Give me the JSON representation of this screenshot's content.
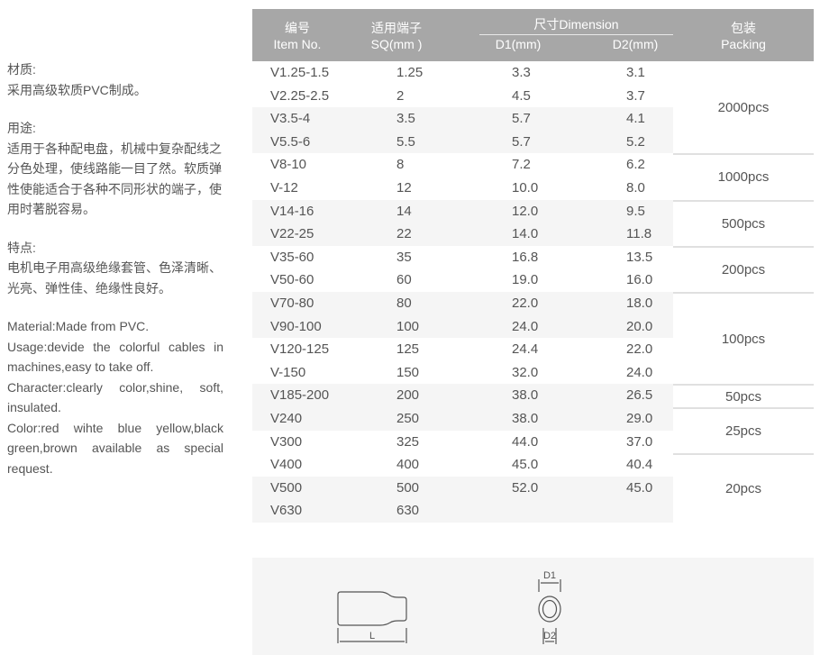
{
  "description": {
    "cn_material_title": "材质:",
    "cn_material_text": "采用高级软质PVC制成。",
    "cn_usage_title": "用途:",
    "cn_usage_text": "适用于各种配电盘，机械中复杂配线之分色处理，使线路能一目了然。软质弹性使能适合于各种不同形状的端子，使用时著脱容易。",
    "cn_feature_title": "特点:",
    "cn_feature_text": "电机电子用高级绝缘套管、色泽清晰、光亮、弹性佳、绝缘性良好。",
    "en_material": "Material:Made from PVC.",
    "en_usage": "Usage:devide the colorful cables in machines,easy to take off.",
    "en_character": "Character:clearly color,shine, soft, insulated.",
    "en_color": "Color:red wihte blue yellow,black green,brown available as special request."
  },
  "table": {
    "header": {
      "item_cn": "编号",
      "item_en": "Item No.",
      "sq_cn": "适用端子",
      "sq_en": "SQ(mm )",
      "dimension": "尺寸Dimension",
      "d1": "D1(mm)",
      "d2": "D2(mm)",
      "packing_cn": "包装",
      "packing_en": "Packing"
    },
    "rows": [
      [
        "V1.25-1.5",
        "1.25",
        "3.3",
        "3.1"
      ],
      [
        "V2.25-2.5",
        "2",
        "4.5",
        "3.7"
      ],
      [
        "V3.5-4",
        "3.5",
        "5.7",
        "4.1"
      ],
      [
        "V5.5-6",
        "5.5",
        "5.7",
        "5.2"
      ],
      [
        "V8-10",
        "8",
        "7.2",
        "6.2"
      ],
      [
        "V-12",
        "12",
        "10.0",
        "8.0"
      ],
      [
        "V14-16",
        "14",
        "12.0",
        "9.5"
      ],
      [
        "V22-25",
        "22",
        "14.0",
        "11.8"
      ],
      [
        "V35-60",
        "35",
        "16.8",
        "13.5"
      ],
      [
        "V50-60",
        "60",
        "19.0",
        "16.0"
      ],
      [
        "V70-80",
        "80",
        "22.0",
        "18.0"
      ],
      [
        "V90-100",
        "100",
        "24.0",
        "20.0"
      ],
      [
        "V120-125",
        "125",
        "24.4",
        "22.0"
      ],
      [
        "V-150",
        "150",
        "32.0",
        "24.0"
      ],
      [
        "V185-200",
        "200",
        "38.0",
        "26.5"
      ],
      [
        "V240",
        "250",
        "38.0",
        "29.0"
      ],
      [
        "V300",
        "325",
        "44.0",
        "37.0"
      ],
      [
        "V400",
        "400",
        "45.0",
        "40.4"
      ],
      [
        "V500",
        "500",
        "52.0",
        "45.0"
      ],
      [
        "V630",
        "630",
        "",
        ""
      ]
    ],
    "packing": [
      {
        "label": "2000pcs",
        "rows": 4
      },
      {
        "label": "1000pcs",
        "rows": 2
      },
      {
        "label": "500pcs",
        "rows": 2
      },
      {
        "label": "200pcs",
        "rows": 2
      },
      {
        "label": "100pcs",
        "rows": 4
      },
      {
        "label": "50pcs",
        "rows": 1
      },
      {
        "label": "25pcs",
        "rows": 2
      },
      {
        "label": "20pcs",
        "rows": 3
      }
    ]
  },
  "diagram": {
    "length_label": "L",
    "d1_label": "D1",
    "d2_label": "D2"
  }
}
